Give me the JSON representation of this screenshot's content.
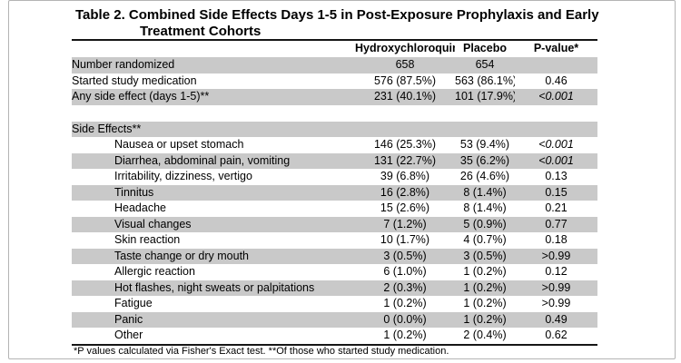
{
  "title_lines": [
    "Table 2. Combined Side Effects Days 1-5 in Post-Exposure Prophylaxis and Early",
    "Treatment Cohorts"
  ],
  "footnote": "*P values calculated via Fisher's Exact test. **Of those who started study medication.",
  "colors": {
    "row_shading": "#c9c9c9",
    "rule": "#161616",
    "frame_border": "#b4b4b4"
  },
  "table": {
    "columns": [
      "",
      "Hydroxychloroquine",
      "Placebo",
      "P-value*"
    ],
    "rows": [
      {
        "label": "Number randomized",
        "hcq": "658",
        "placebo": "654",
        "p": "",
        "indent": false,
        "shaded": true,
        "strongP": false
      },
      {
        "label": "Started study medication",
        "hcq": "576 (87.5%)",
        "placebo": "563 (86.1%)",
        "p": "0.46",
        "indent": false,
        "shaded": false,
        "strongP": false
      },
      {
        "label": "Any side effect (days 1-5)**",
        "hcq": "231 (40.1%)",
        "placebo": "101 (17.9%)",
        "p": "<0.001",
        "indent": false,
        "shaded": true,
        "strongP": true
      },
      {
        "type": "spacer"
      },
      {
        "label": "Side Effects**",
        "section": true,
        "shaded": true
      },
      {
        "label": "Nausea or upset stomach",
        "hcq": "146 (25.3%)",
        "placebo": "53 (9.4%)",
        "p": "<0.001",
        "indent": true,
        "shaded": false,
        "strongP": true
      },
      {
        "label": "Diarrhea, abdominal pain, vomiting",
        "hcq": "131 (22.7%)",
        "placebo": "35 (6.2%)",
        "p": "<0.001",
        "indent": true,
        "shaded": true,
        "strongP": true
      },
      {
        "label": "Irritability, dizziness, vertigo",
        "hcq": "39 (6.8%)",
        "placebo": "26 (4.6%)",
        "p": "0.13",
        "indent": true,
        "shaded": false,
        "strongP": false
      },
      {
        "label": "Tinnitus",
        "hcq": "16 (2.8%)",
        "placebo": "8 (1.4%)",
        "p": "0.15",
        "indent": true,
        "shaded": true,
        "strongP": false
      },
      {
        "label": "Headache",
        "hcq": "15 (2.6%)",
        "placebo": "8 (1.4%)",
        "p": "0.21",
        "indent": true,
        "shaded": false,
        "strongP": false
      },
      {
        "label": "Visual changes",
        "hcq": "7 (1.2%)",
        "placebo": "5 (0.9%)",
        "p": "0.77",
        "indent": true,
        "shaded": true,
        "strongP": false
      },
      {
        "label": "Skin reaction",
        "hcq": "10 (1.7%)",
        "placebo": "4 (0.7%)",
        "p": "0.18",
        "indent": true,
        "shaded": false,
        "strongP": false
      },
      {
        "label": "Taste change or dry mouth",
        "hcq": "3 (0.5%)",
        "placebo": "3 (0.5%)",
        "p": ">0.99",
        "indent": true,
        "shaded": true,
        "strongP": false
      },
      {
        "label": "Allergic reaction",
        "hcq": "6 (1.0%)",
        "placebo": "1 (0.2%)",
        "p": "0.12",
        "indent": true,
        "shaded": false,
        "strongP": false
      },
      {
        "label": "Hot flashes, night sweats or palpitations",
        "hcq": "2 (0.3%)",
        "placebo": "1 (0.2%)",
        "p": ">0.99",
        "indent": true,
        "shaded": true,
        "strongP": false
      },
      {
        "label": "Fatigue",
        "hcq": "1 (0.2%)",
        "placebo": "1 (0.2%)",
        "p": ">0.99",
        "indent": true,
        "shaded": false,
        "strongP": false
      },
      {
        "label": "Panic",
        "hcq": "0 (0.0%)",
        "placebo": "1 (0.2%)",
        "p": "0.49",
        "indent": true,
        "shaded": true,
        "strongP": false
      },
      {
        "label": "Other",
        "hcq": "1 (0.2%)",
        "placebo": "2 (0.4%)",
        "p": "0.62",
        "indent": true,
        "shaded": false,
        "strongP": false
      }
    ]
  }
}
